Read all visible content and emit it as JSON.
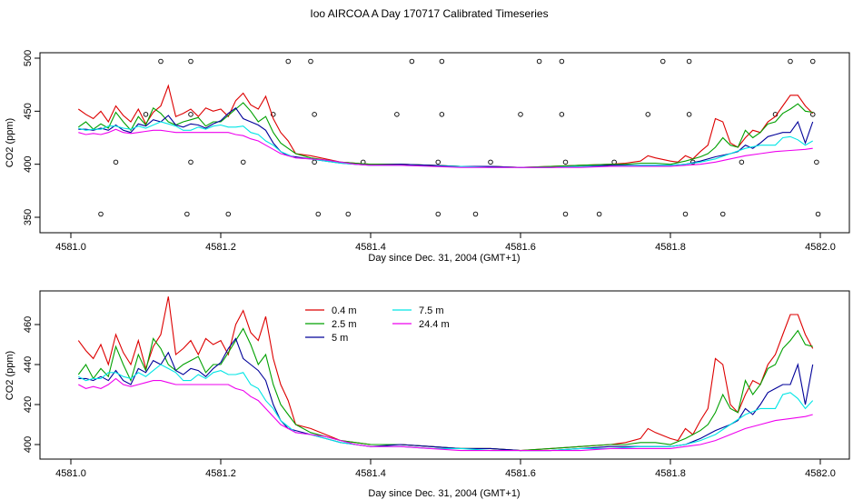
{
  "title": "Ioo AIRCOA A  Day 170717  Calibrated Timeseries",
  "chart_data": [
    {
      "type": "scatter",
      "xlabel": "Day since Dec. 31, 2004 (GMT+1)",
      "ylabel": "CO2 (ppm)",
      "xlim": [
        4581.0,
        4582.0
      ],
      "ylim": [
        350,
        500
      ],
      "x_ticks": [
        "4581.0",
        "4581.2",
        "4581.4",
        "4581.6",
        "4581.8",
        "4582.0"
      ],
      "y_ticks": [
        "350",
        "400",
        "450",
        "500"
      ],
      "points_note": "calibration standard points plus five height series",
      "calibration_points": [
        [
          4581.04,
          353
        ],
        [
          4581.06,
          402
        ],
        [
          4581.1,
          447
        ],
        [
          4581.12,
          497
        ],
        [
          4581.16,
          497
        ],
        [
          4581.155,
          353
        ],
        [
          4581.16,
          402
        ],
        [
          4581.16,
          447
        ],
        [
          4581.21,
          353
        ],
        [
          4581.23,
          402
        ],
        [
          4581.29,
          497
        ],
        [
          4581.27,
          447
        ],
        [
          4581.32,
          497
        ],
        [
          4581.325,
          447
        ],
        [
          4581.325,
          402
        ],
        [
          4581.33,
          353
        ],
        [
          4581.37,
          353
        ],
        [
          4581.39,
          402
        ],
        [
          4581.435,
          447
        ],
        [
          4581.455,
          497
        ],
        [
          4581.49,
          353
        ],
        [
          4581.49,
          402
        ],
        [
          4581.495,
          447
        ],
        [
          4581.495,
          497
        ],
        [
          4581.54,
          353
        ],
        [
          4581.56,
          402
        ],
        [
          4581.6,
          447
        ],
        [
          4581.625,
          497
        ],
        [
          4581.655,
          497
        ],
        [
          4581.655,
          447
        ],
        [
          4581.66,
          402
        ],
        [
          4581.66,
          353
        ],
        [
          4581.705,
          353
        ],
        [
          4581.725,
          402
        ],
        [
          4581.77,
          447
        ],
        [
          4581.79,
          497
        ],
        [
          4581.82,
          353
        ],
        [
          4581.825,
          447
        ],
        [
          4581.825,
          497
        ],
        [
          4581.83,
          402
        ],
        [
          4581.87,
          353
        ],
        [
          4581.895,
          402
        ],
        [
          4581.94,
          447
        ],
        [
          4581.96,
          497
        ],
        [
          4581.99,
          497
        ],
        [
          4581.99,
          447
        ],
        [
          4581.995,
          402
        ],
        [
          4581.997,
          353
        ]
      ],
      "series_ref": "shared"
    },
    {
      "type": "line",
      "xlabel": "Day since Dec. 31, 2004 (GMT+1)",
      "ylabel": "CO2 (ppm)",
      "xlim": [
        4581.0,
        4582.0
      ],
      "ylim": [
        395,
        475
      ],
      "x_ticks": [
        "4581.0",
        "4581.2",
        "4581.4",
        "4581.6",
        "4581.8",
        "4582.0"
      ],
      "y_ticks": [
        "400",
        "420",
        "440",
        "460"
      ],
      "legend": {
        "placement": "top-left",
        "entries": [
          "0.4 m",
          "2.5 m",
          "5 m",
          "7.5 m",
          "24.4 m"
        ]
      },
      "series_ref": "shared"
    }
  ],
  "series": [
    {
      "name": "0.4 m",
      "color": "#dd0000",
      "x": [
        4581.01,
        4581.02,
        4581.03,
        4581.04,
        4581.05,
        4581.06,
        4581.07,
        4581.08,
        4581.09,
        4581.1,
        4581.11,
        4581.12,
        4581.13,
        4581.14,
        4581.15,
        4581.16,
        4581.17,
        4581.18,
        4581.19,
        4581.2,
        4581.21,
        4581.22,
        4581.23,
        4581.24,
        4581.25,
        4581.26,
        4581.27,
        4581.28,
        4581.29,
        4581.3,
        4581.32,
        4581.34,
        4581.36,
        4581.38,
        4581.4,
        4581.44,
        4581.48,
        4581.52,
        4581.56,
        4581.6,
        4581.64,
        4581.68,
        4581.72,
        4581.74,
        4581.76,
        4581.77,
        4581.78,
        4581.8,
        4581.81,
        4581.82,
        4581.83,
        4581.84,
        4581.85,
        4581.86,
        4581.87,
        4581.88,
        4581.89,
        4581.9,
        4581.91,
        4581.92,
        4581.93,
        4581.94,
        4581.95,
        4581.96,
        4581.97,
        4581.98,
        4581.99
      ],
      "y": [
        452,
        447,
        443,
        450,
        440,
        455,
        446,
        440,
        452,
        438,
        449,
        455,
        474,
        445,
        448,
        452,
        445,
        453,
        450,
        452,
        445,
        460,
        467,
        456,
        452,
        464,
        443,
        430,
        422,
        410,
        408,
        405,
        402,
        401,
        400,
        400,
        399,
        398,
        398,
        397,
        398,
        399,
        400,
        401,
        403,
        408,
        406,
        403,
        402,
        408,
        405,
        412,
        418,
        443,
        440,
        420,
        416,
        425,
        432,
        430,
        440,
        445,
        455,
        465,
        465,
        455,
        448
      ]
    },
    {
      "name": "2.5 m",
      "color": "#00a000",
      "x": [
        4581.01,
        4581.02,
        4581.03,
        4581.04,
        4581.05,
        4581.06,
        4581.07,
        4581.08,
        4581.09,
        4581.1,
        4581.11,
        4581.12,
        4581.13,
        4581.14,
        4581.15,
        4581.16,
        4581.17,
        4581.18,
        4581.19,
        4581.2,
        4581.21,
        4581.22,
        4581.23,
        4581.24,
        4581.25,
        4581.26,
        4581.27,
        4581.28,
        4581.29,
        4581.3,
        4581.32,
        4581.34,
        4581.36,
        4581.38,
        4581.4,
        4581.44,
        4581.48,
        4581.52,
        4581.56,
        4581.6,
        4581.64,
        4581.68,
        4581.72,
        4581.74,
        4581.76,
        4581.78,
        4581.8,
        4581.82,
        4581.84,
        4581.85,
        4581.86,
        4581.87,
        4581.88,
        4581.89,
        4581.9,
        4581.91,
        4581.92,
        4581.93,
        4581.94,
        4581.95,
        4581.96,
        4581.97,
        4581.98,
        4581.99
      ],
      "y": [
        435,
        440,
        433,
        438,
        434,
        449,
        440,
        432,
        445,
        437,
        453,
        448,
        440,
        437,
        440,
        442,
        444,
        436,
        440,
        440,
        446,
        452,
        458,
        450,
        440,
        445,
        430,
        420,
        415,
        410,
        406,
        404,
        402,
        401,
        400,
        400,
        399,
        398,
        398,
        397,
        398,
        399,
        400,
        400,
        401,
        401,
        400,
        403,
        407,
        410,
        416,
        425,
        418,
        416,
        432,
        425,
        430,
        438,
        440,
        448,
        452,
        457,
        450,
        449
      ]
    },
    {
      "name": "5 m",
      "color": "#000099",
      "x": [
        4581.01,
        4581.02,
        4581.03,
        4581.04,
        4581.05,
        4581.06,
        4581.07,
        4581.08,
        4581.09,
        4581.1,
        4581.11,
        4581.12,
        4581.13,
        4581.14,
        4581.15,
        4581.16,
        4581.17,
        4581.18,
        4581.19,
        4581.2,
        4581.21,
        4581.22,
        4581.23,
        4581.24,
        4581.25,
        4581.26,
        4581.27,
        4581.28,
        4581.29,
        4581.3,
        4581.32,
        4581.34,
        4581.36,
        4581.38,
        4581.4,
        4581.44,
        4581.48,
        4581.52,
        4581.56,
        4581.6,
        4581.64,
        4581.68,
        4581.72,
        4581.76,
        4581.8,
        4581.82,
        4581.84,
        4581.86,
        4581.88,
        4581.89,
        4581.9,
        4581.91,
        4581.92,
        4581.93,
        4581.94,
        4581.95,
        4581.96,
        4581.97,
        4581.98,
        4581.99
      ],
      "y": [
        433,
        433,
        432,
        434,
        432,
        437,
        432,
        430,
        438,
        436,
        442,
        440,
        446,
        437,
        435,
        438,
        437,
        434,
        438,
        441,
        448,
        453,
        443,
        440,
        437,
        432,
        420,
        412,
        408,
        407,
        405,
        403,
        401,
        400,
        399,
        400,
        399,
        398,
        398,
        397,
        397,
        398,
        399,
        399,
        399,
        400,
        403,
        407,
        410,
        412,
        418,
        415,
        420,
        426,
        428,
        430,
        430,
        440,
        420,
        440
      ]
    },
    {
      "name": "7.5 m",
      "color": "#00e5e5",
      "x": [
        4581.01,
        4581.02,
        4581.03,
        4581.04,
        4581.05,
        4581.06,
        4581.07,
        4581.08,
        4581.09,
        4581.1,
        4581.11,
        4581.12,
        4581.13,
        4581.14,
        4581.15,
        4581.16,
        4581.17,
        4581.18,
        4581.19,
        4581.2,
        4581.21,
        4581.22,
        4581.23,
        4581.24,
        4581.25,
        4581.26,
        4581.27,
        4581.28,
        4581.3,
        4581.32,
        4581.34,
        4581.36,
        4581.38,
        4581.4,
        4581.44,
        4581.48,
        4581.52,
        4581.56,
        4581.6,
        4581.64,
        4581.68,
        4581.72,
        4581.76,
        4581.8,
        4581.82,
        4581.84,
        4581.86,
        4581.88,
        4581.9,
        4581.92,
        4581.94,
        4581.95,
        4581.96,
        4581.97,
        4581.98,
        4581.99
      ],
      "y": [
        434,
        432,
        433,
        433,
        436,
        436,
        434,
        433,
        436,
        434,
        437,
        440,
        438,
        436,
        432,
        432,
        435,
        433,
        436,
        437,
        435,
        435,
        436,
        430,
        428,
        422,
        418,
        412,
        406,
        405,
        403,
        401,
        400,
        399,
        399,
        398,
        398,
        397,
        397,
        397,
        398,
        398,
        399,
        399,
        400,
        402,
        405,
        410,
        415,
        418,
        418,
        425,
        426,
        423,
        418,
        422
      ]
    },
    {
      "name": "24.4 m",
      "color": "#ee00ee",
      "x": [
        4581.01,
        4581.02,
        4581.03,
        4581.04,
        4581.05,
        4581.06,
        4581.07,
        4581.08,
        4581.09,
        4581.1,
        4581.11,
        4581.12,
        4581.13,
        4581.14,
        4581.15,
        4581.16,
        4581.17,
        4581.18,
        4581.19,
        4581.2,
        4581.21,
        4581.22,
        4581.23,
        4581.24,
        4581.25,
        4581.26,
        4581.27,
        4581.28,
        4581.3,
        4581.32,
        4581.34,
        4581.36,
        4581.38,
        4581.4,
        4581.44,
        4581.48,
        4581.52,
        4581.56,
        4581.6,
        4581.64,
        4581.68,
        4581.72,
        4581.76,
        4581.8,
        4581.82,
        4581.84,
        4581.86,
        4581.88,
        4581.9,
        4581.92,
        4581.94,
        4581.96,
        4581.98,
        4581.99
      ],
      "y": [
        430,
        428,
        429,
        428,
        430,
        433,
        430,
        429,
        430,
        431,
        432,
        432,
        431,
        430,
        430,
        430,
        430,
        430,
        430,
        430,
        430,
        428,
        427,
        424,
        422,
        418,
        414,
        410,
        406,
        405,
        404,
        402,
        400,
        399,
        399,
        398,
        397,
        397,
        397,
        397,
        397,
        398,
        398,
        398,
        399,
        400,
        402,
        405,
        408,
        410,
        412,
        413,
        414,
        415
      ]
    }
  ]
}
